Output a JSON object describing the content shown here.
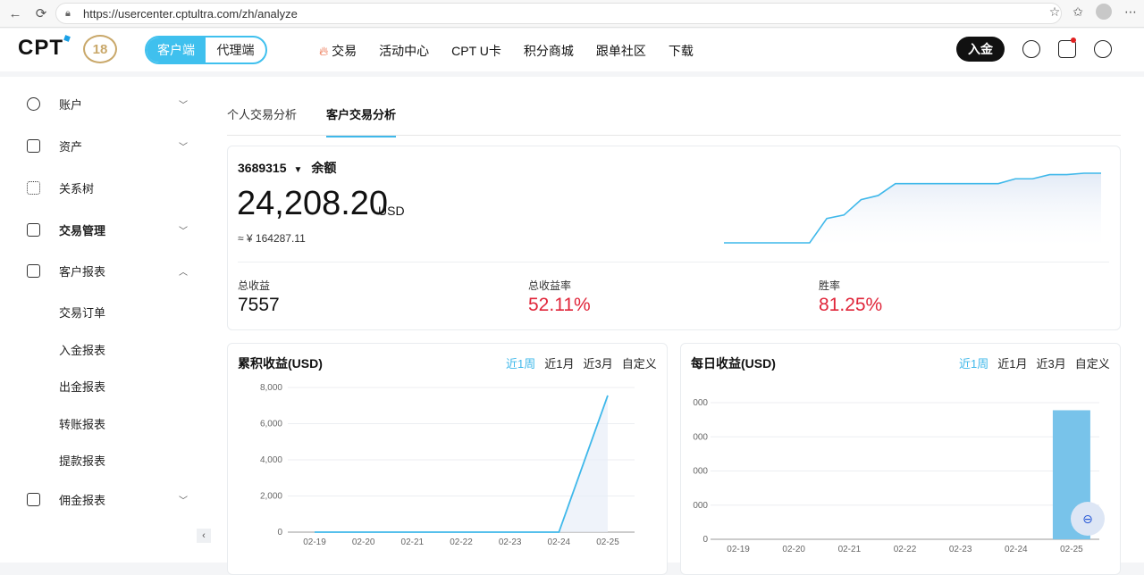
{
  "browser": {
    "url": "https://usercenter.cptultra.com/zh/analyze"
  },
  "header": {
    "logo": "CPT",
    "anniversary": "18",
    "switch": {
      "client": "客户端",
      "agent": "代理端"
    },
    "nav": [
      "交易",
      "活动中心",
      "CPT U卡",
      "积分商城",
      "跟单社区",
      "下载"
    ],
    "deposit": "入金"
  },
  "sidebar": {
    "items": [
      {
        "label": "账户",
        "icon": "user-icon"
      },
      {
        "label": "资产",
        "icon": "wallet-icon"
      },
      {
        "label": "关系树",
        "icon": "tree-icon"
      },
      {
        "label": "交易管理",
        "icon": "exchange-icon"
      },
      {
        "label": "客户报表",
        "icon": "report-icon"
      },
      {
        "label": "佣金报表",
        "icon": "commission-icon"
      }
    ],
    "sub_items": [
      "交易订单",
      "入金报表",
      "出金报表",
      "转账报表",
      "提款报表"
    ]
  },
  "tabs": [
    "个人交易分析",
    "客户交易分析"
  ],
  "account": {
    "id": "3689315",
    "balance_label": "余额",
    "balance": "24,208.20",
    "currency": "USD",
    "approx": "≈ ¥ 164287.11"
  },
  "stats": [
    {
      "label": "总收益",
      "value": "7557",
      "color": "#111111"
    },
    {
      "label": "总收益率",
      "value": "52.11%",
      "color": "#e0263a"
    },
    {
      "label": "胜率",
      "value": "81.25%",
      "color": "#e0263a"
    }
  ],
  "ranges": [
    "近1周",
    "近1月",
    "近3月",
    "自定义"
  ],
  "colors": {
    "accent": "#3fb8ea",
    "negative": "#e0263a"
  },
  "chart_data": [
    {
      "type": "area",
      "title": "",
      "xlabel": "",
      "ylabel": "",
      "series": [
        {
          "values": [
            0.0,
            0.0,
            0.0,
            0.0,
            0.0,
            0.0,
            0.35,
            0.4,
            0.62,
            0.68,
            0.85,
            0.85,
            0.85,
            0.85,
            0.85,
            0.85,
            0.85,
            0.92,
            0.92,
            0.98,
            0.98,
            1.0,
            1.0
          ]
        }
      ],
      "grid": false
    },
    {
      "type": "area",
      "title": "累积收益(USD)",
      "categories": [
        "02-19",
        "02-20",
        "02-21",
        "02-22",
        "02-23",
        "02-24",
        "02-25"
      ],
      "values": [
        0,
        0,
        0,
        0,
        0,
        0,
        7557
      ],
      "yticks": [
        "8,000",
        "6,000",
        "4,000",
        "2,000",
        "0"
      ],
      "ylim": [
        0,
        8000
      ],
      "grid": true
    },
    {
      "type": "bar",
      "title": "每日收益(USD)",
      "categories": [
        "02-19",
        "02-20",
        "02-21",
        "02-22",
        "02-23",
        "02-24",
        "02-25"
      ],
      "values": [
        0,
        0,
        0,
        0,
        0,
        0,
        7557
      ],
      "yticks": [
        "000",
        "000",
        "000",
        "000",
        "0"
      ],
      "ylim": [
        0,
        8000
      ],
      "grid": true
    }
  ]
}
